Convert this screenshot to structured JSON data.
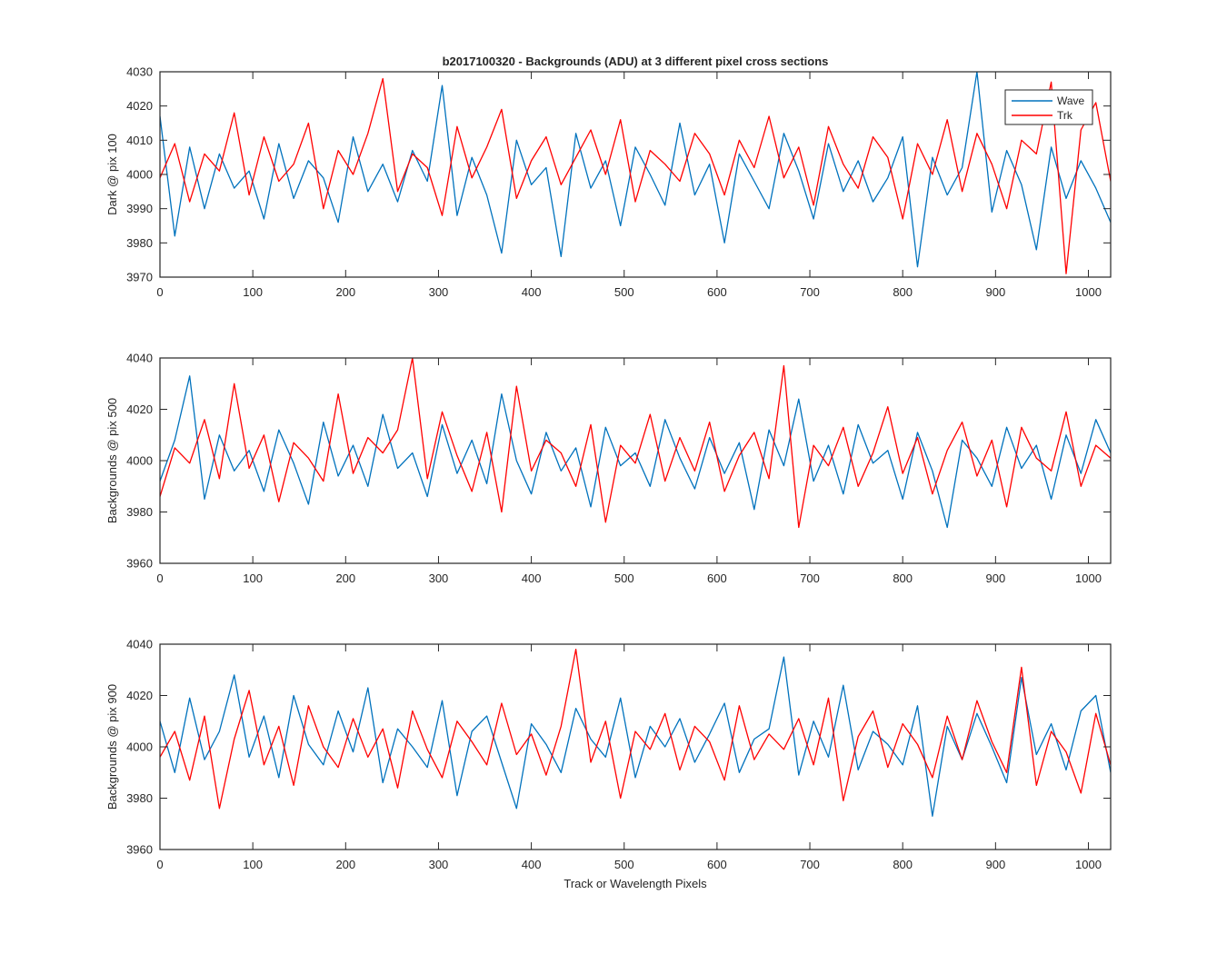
{
  "chart_data": [
    {
      "type": "line",
      "title": "b2017100320 - Backgrounds (ADU) at 3 different pixel cross sections",
      "xlabel": "",
      "ylabel": "Dark @ pix 100",
      "xlim": [
        0,
        1024
      ],
      "ylim": [
        3970,
        4030
      ],
      "xticks": [
        0,
        100,
        200,
        300,
        400,
        500,
        600,
        700,
        800,
        900,
        1000
      ],
      "yticks": [
        3970,
        3980,
        3990,
        4000,
        4010,
        4020,
        4030
      ],
      "legend": {
        "position": "top-right",
        "entries": [
          "Wave",
          "Trk"
        ]
      },
      "x": [
        0,
        16,
        32,
        48,
        64,
        80,
        96,
        112,
        128,
        144,
        160,
        176,
        192,
        208,
        224,
        240,
        256,
        272,
        288,
        304,
        320,
        336,
        352,
        368,
        384,
        400,
        416,
        432,
        448,
        464,
        480,
        496,
        512,
        528,
        544,
        560,
        576,
        592,
        608,
        624,
        640,
        656,
        672,
        688,
        704,
        720,
        736,
        752,
        768,
        784,
        800,
        816,
        832,
        848,
        864,
        880,
        896,
        912,
        928,
        944,
        960,
        976,
        992,
        1008,
        1024
      ],
      "series": [
        {
          "name": "Wave",
          "color": "#0072BD",
          "values": [
            4017,
            3982,
            4008,
            3990,
            4006,
            3996,
            4001,
            3987,
            4009,
            3993,
            4004,
            3999,
            3986,
            4011,
            3995,
            4003,
            3992,
            4007,
            3998,
            4026,
            3988,
            4005,
            3994,
            3977,
            4010,
            3997,
            4002,
            3976,
            4012,
            3996,
            4004,
            3985,
            4008,
            4000,
            3991,
            4015,
            3994,
            4003,
            3980,
            4006,
            3998,
            3990,
            4012,
            4001,
            3987,
            4009,
            3995,
            4004,
            3992,
            3999,
            4011,
            3973,
            4005,
            3994,
            4002,
            4030,
            3989,
            4007,
            3997,
            3978,
            4008,
            3993,
            4004,
            3996,
            3986
          ]
        },
        {
          "name": "Trk",
          "color": "#FF0000",
          "values": [
            3999,
            4009,
            3992,
            4006,
            4001,
            4018,
            3994,
            4011,
            3998,
            4003,
            4015,
            3990,
            4007,
            4000,
            4012,
            4028,
            3995,
            4006,
            4002,
            3988,
            4014,
            3999,
            4008,
            4019,
            3993,
            4004,
            4011,
            3997,
            4005,
            4013,
            4000,
            4016,
            3992,
            4007,
            4003,
            3998,
            4012,
            4006,
            3994,
            4010,
            4002,
            4017,
            3999,
            4008,
            3991,
            4014,
            4003,
            3996,
            4011,
            4005,
            3987,
            4009,
            4000,
            4016,
            3995,
            4012,
            4003,
            3990,
            4010,
            4006,
            4027,
            3971,
            4013,
            4021,
            3998
          ]
        }
      ]
    },
    {
      "type": "line",
      "title": "",
      "xlabel": "",
      "ylabel": "Backgrounds @ pix 500",
      "xlim": [
        0,
        1024
      ],
      "ylim": [
        3960,
        4040
      ],
      "xticks": [
        0,
        100,
        200,
        300,
        400,
        500,
        600,
        700,
        800,
        900,
        1000
      ],
      "yticks": [
        3960,
        3980,
        4000,
        4020,
        4040
      ],
      "x": [
        0,
        16,
        32,
        48,
        64,
        80,
        96,
        112,
        128,
        144,
        160,
        176,
        192,
        208,
        224,
        240,
        256,
        272,
        288,
        304,
        320,
        336,
        352,
        368,
        384,
        400,
        416,
        432,
        448,
        464,
        480,
        496,
        512,
        528,
        544,
        560,
        576,
        592,
        608,
        624,
        640,
        656,
        672,
        688,
        704,
        720,
        736,
        752,
        768,
        784,
        800,
        816,
        832,
        848,
        864,
        880,
        896,
        912,
        928,
        944,
        960,
        976,
        992,
        1008,
        1024
      ],
      "series": [
        {
          "name": "Wave",
          "color": "#0072BD",
          "values": [
            3992,
            4008,
            4033,
            3985,
            4010,
            3996,
            4004,
            3988,
            4012,
            3999,
            3983,
            4015,
            3994,
            4006,
            3990,
            4018,
            3997,
            4003,
            3986,
            4014,
            3995,
            4008,
            3991,
            4026,
            4000,
            3987,
            4011,
            3996,
            4005,
            3982,
            4013,
            3998,
            4003,
            3990,
            4016,
            4001,
            3989,
            4009,
            3995,
            4007,
            3981,
            4012,
            3998,
            4024,
            3992,
            4006,
            3987,
            4014,
            3999,
            4004,
            3985,
            4011,
            3996,
            3974,
            4008,
            4001,
            3990,
            4013,
            3997,
            4006,
            3985,
            4010,
            3995,
            4016,
            4003
          ]
        },
        {
          "name": "Trk",
          "color": "#FF0000",
          "values": [
            3986,
            4005,
            3999,
            4016,
            3993,
            4030,
            3997,
            4010,
            3984,
            4007,
            4001,
            3992,
            4026,
            3995,
            4009,
            4003,
            4012,
            4040,
            3993,
            4019,
            4002,
            3988,
            4011,
            3980,
            4029,
            3996,
            4008,
            4003,
            3990,
            4014,
            3976,
            4006,
            3999,
            4018,
            3992,
            4009,
            3996,
            4015,
            3988,
            4002,
            4011,
            3993,
            4037,
            3974,
            4006,
            3998,
            4013,
            3990,
            4003,
            4021,
            3995,
            4009,
            3987,
            4004,
            4015,
            3994,
            4008,
            3982,
            4013,
            4001,
            3996,
            4019,
            3990,
            4006,
            4001
          ]
        }
      ]
    },
    {
      "type": "line",
      "title": "",
      "xlabel": "Track or Wavelength Pixels",
      "ylabel": "Backgrounds @ pix 900",
      "xlim": [
        0,
        1024
      ],
      "ylim": [
        3960,
        4040
      ],
      "xticks": [
        0,
        100,
        200,
        300,
        400,
        500,
        600,
        700,
        800,
        900,
        1000
      ],
      "yticks": [
        3960,
        3980,
        4000,
        4020,
        4040
      ],
      "x": [
        0,
        16,
        32,
        48,
        64,
        80,
        96,
        112,
        128,
        144,
        160,
        176,
        192,
        208,
        224,
        240,
        256,
        272,
        288,
        304,
        320,
        336,
        352,
        368,
        384,
        400,
        416,
        432,
        448,
        464,
        480,
        496,
        512,
        528,
        544,
        560,
        576,
        592,
        608,
        624,
        640,
        656,
        672,
        688,
        704,
        720,
        736,
        752,
        768,
        784,
        800,
        816,
        832,
        848,
        864,
        880,
        896,
        912,
        928,
        944,
        960,
        976,
        992,
        1008,
        1024
      ],
      "series": [
        {
          "name": "Wave",
          "color": "#0072BD",
          "values": [
            4010,
            3990,
            4019,
            3995,
            4006,
            4028,
            3996,
            4012,
            3988,
            4020,
            4001,
            3993,
            4014,
            3998,
            4023,
            3986,
            4007,
            4000,
            3992,
            4018,
            3981,
            4006,
            4012,
            3994,
            3976,
            4009,
            4001,
            3990,
            4015,
            4003,
            3996,
            4019,
            3988,
            4008,
            4000,
            4011,
            3994,
            4005,
            4017,
            3990,
            4003,
            4007,
            4035,
            3989,
            4010,
            3996,
            4024,
            3991,
            4006,
            4001,
            3993,
            4016,
            3973,
            4008,
            3995,
            4013,
            4000,
            3986,
            4027,
            3997,
            4009,
            3991,
            4014,
            4020,
            3990
          ]
        },
        {
          "name": "Trk",
          "color": "#FF0000",
          "values": [
            3996,
            4006,
            3987,
            4012,
            3976,
            4003,
            4022,
            3993,
            4008,
            3985,
            4016,
            4000,
            3992,
            4011,
            3996,
            4007,
            3984,
            4014,
            3999,
            3988,
            4010,
            4002,
            3993,
            4017,
            3997,
            4005,
            3989,
            4008,
            4038,
            3994,
            4010,
            3980,
            4006,
            3999,
            4013,
            3991,
            4008,
            4002,
            3987,
            4016,
            3995,
            4005,
            3999,
            4011,
            3993,
            4019,
            3979,
            4004,
            4014,
            3992,
            4009,
            4001,
            3988,
            4012,
            3995,
            4018,
            4002,
            3990,
            4031,
            3985,
            4006,
            3998,
            3982,
            4013,
            3993
          ]
        }
      ]
    }
  ]
}
